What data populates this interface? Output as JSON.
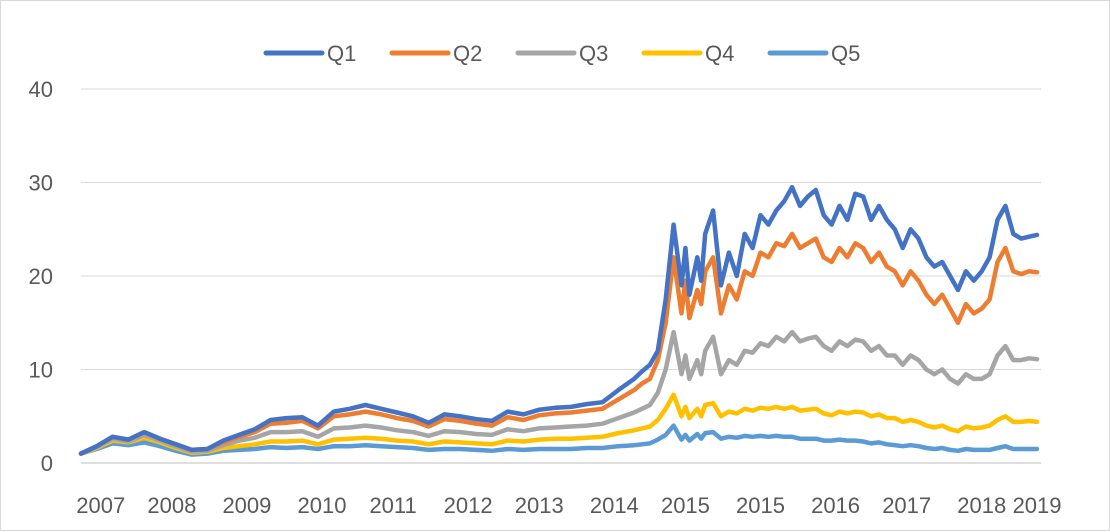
{
  "chart_data": {
    "type": "line",
    "title": "",
    "xlabel": "",
    "ylabel": "",
    "ylim": [
      0,
      40
    ],
    "yticks": [
      0,
      10,
      20,
      30,
      40
    ],
    "ytick_labels": [
      "0",
      "10",
      "20",
      "30",
      "40"
    ],
    "xlim": [
      2006.9,
      2019.05
    ],
    "xtick_labels": [
      "2007",
      "2008",
      "2009",
      "2010",
      "2011",
      "2012",
      "2013",
      "2014",
      "2015",
      "2015",
      "2016",
      "2017",
      "2018",
      "2019"
    ],
    "xtick_positions": [
      2007.15,
      2008.05,
      2009.0,
      2009.95,
      2010.85,
      2011.8,
      2012.7,
      2013.65,
      2014.55,
      2015.5,
      2016.45,
      2017.35,
      2018.3,
      2019.0
    ],
    "grid": "horizontal",
    "legend": "top",
    "series": [
      {
        "name": "Q1",
        "color": "#4472c4",
        "x": [
          2006.9,
          2007.1,
          2007.3,
          2007.5,
          2007.7,
          2007.9,
          2008.1,
          2008.3,
          2008.5,
          2008.7,
          2008.9,
          2009.1,
          2009.3,
          2009.5,
          2009.7,
          2009.9,
          2010.1,
          2010.3,
          2010.5,
          2010.7,
          2010.9,
          2011.1,
          2011.3,
          2011.5,
          2011.7,
          2011.9,
          2012.1,
          2012.3,
          2012.5,
          2012.7,
          2012.9,
          2013.1,
          2013.3,
          2013.5,
          2013.7,
          2013.9,
          2014.0,
          2014.1,
          2014.2,
          2014.3,
          2014.4,
          2014.5,
          2014.55,
          2014.6,
          2014.7,
          2014.75,
          2014.8,
          2014.9,
          2015.0,
          2015.1,
          2015.2,
          2015.3,
          2015.4,
          2015.5,
          2015.6,
          2015.7,
          2015.8,
          2015.9,
          2016.0,
          2016.1,
          2016.2,
          2016.3,
          2016.4,
          2016.5,
          2016.6,
          2016.7,
          2016.8,
          2016.9,
          2017.0,
          2017.1,
          2017.2,
          2017.3,
          2017.4,
          2017.5,
          2017.6,
          2017.7,
          2017.8,
          2017.9,
          2018.0,
          2018.1,
          2018.2,
          2018.3,
          2018.4,
          2018.5,
          2018.6,
          2018.7,
          2018.8,
          2018.9,
          2019.0
        ],
        "values": [
          1.0,
          1.8,
          2.8,
          2.5,
          3.3,
          2.6,
          2.0,
          1.4,
          1.5,
          2.4,
          3.0,
          3.6,
          4.6,
          4.8,
          4.9,
          4.0,
          5.5,
          5.8,
          6.2,
          5.8,
          5.4,
          5.0,
          4.3,
          5.2,
          5.0,
          4.7,
          4.5,
          5.5,
          5.2,
          5.7,
          5.9,
          6.0,
          6.3,
          6.5,
          7.8,
          9.0,
          9.8,
          10.5,
          12.0,
          17.5,
          25.5,
          19.0,
          23.0,
          18.0,
          22.0,
          19.5,
          24.5,
          27.0,
          19.0,
          22.5,
          20.0,
          24.5,
          23.0,
          26.5,
          25.5,
          27.0,
          28.0,
          29.5,
          27.5,
          28.5,
          29.2,
          26.5,
          25.5,
          27.5,
          26.0,
          28.8,
          28.5,
          26.0,
          27.5,
          26.0,
          25.0,
          23.0,
          25.0,
          24.0,
          22.0,
          21.0,
          21.5,
          20.0,
          18.5,
          20.5,
          19.5,
          20.5,
          22.0,
          26.0,
          27.5,
          24.5,
          24.0,
          24.2,
          24.4
        ]
      },
      {
        "name": "Q2",
        "color": "#ed7d31",
        "x": [
          2006.9,
          2007.1,
          2007.3,
          2007.5,
          2007.7,
          2007.9,
          2008.1,
          2008.3,
          2008.5,
          2008.7,
          2008.9,
          2009.1,
          2009.3,
          2009.5,
          2009.7,
          2009.9,
          2010.1,
          2010.3,
          2010.5,
          2010.7,
          2010.9,
          2011.1,
          2011.3,
          2011.5,
          2011.7,
          2011.9,
          2012.1,
          2012.3,
          2012.5,
          2012.7,
          2012.9,
          2013.1,
          2013.3,
          2013.5,
          2013.7,
          2013.9,
          2014.0,
          2014.1,
          2014.2,
          2014.3,
          2014.4,
          2014.5,
          2014.55,
          2014.6,
          2014.7,
          2014.75,
          2014.8,
          2014.9,
          2015.0,
          2015.1,
          2015.2,
          2015.3,
          2015.4,
          2015.5,
          2015.6,
          2015.7,
          2015.8,
          2015.9,
          2016.0,
          2016.1,
          2016.2,
          2016.3,
          2016.4,
          2016.5,
          2016.6,
          2016.7,
          2016.8,
          2016.9,
          2017.0,
          2017.1,
          2017.2,
          2017.3,
          2017.4,
          2017.5,
          2017.6,
          2017.7,
          2017.8,
          2017.9,
          2018.0,
          2018.1,
          2018.2,
          2018.3,
          2018.4,
          2018.5,
          2018.6,
          2018.7,
          2018.8,
          2018.9,
          2019.0
        ],
        "values": [
          1.0,
          1.8,
          2.8,
          2.5,
          3.3,
          2.6,
          2.0,
          1.4,
          1.5,
          2.2,
          2.8,
          3.3,
          4.2,
          4.3,
          4.5,
          3.7,
          5.0,
          5.2,
          5.5,
          5.2,
          4.8,
          4.5,
          3.9,
          4.7,
          4.5,
          4.2,
          4.0,
          4.9,
          4.6,
          5.1,
          5.3,
          5.4,
          5.6,
          5.8,
          6.8,
          7.8,
          8.5,
          9.0,
          11.0,
          15.0,
          22.0,
          16.0,
          19.5,
          15.5,
          18.5,
          17.0,
          20.5,
          22.0,
          16.0,
          19.0,
          17.5,
          20.5,
          20.0,
          22.5,
          22.0,
          23.5,
          23.2,
          24.5,
          23.0,
          23.5,
          24.0,
          22.0,
          21.5,
          23.0,
          22.0,
          23.5,
          23.0,
          21.5,
          22.5,
          21.0,
          20.5,
          19.0,
          20.5,
          19.5,
          18.0,
          17.0,
          18.0,
          16.5,
          15.0,
          17.0,
          16.0,
          16.5,
          17.5,
          21.5,
          23.0,
          20.5,
          20.2,
          20.5,
          20.4
        ]
      },
      {
        "name": "Q3",
        "color": "#a5a5a5",
        "x": [
          2006.9,
          2007.1,
          2007.3,
          2007.5,
          2007.7,
          2007.9,
          2008.1,
          2008.3,
          2008.5,
          2008.7,
          2008.9,
          2009.1,
          2009.3,
          2009.5,
          2009.7,
          2009.9,
          2010.1,
          2010.3,
          2010.5,
          2010.7,
          2010.9,
          2011.1,
          2011.3,
          2011.5,
          2011.7,
          2011.9,
          2012.1,
          2012.3,
          2012.5,
          2012.7,
          2012.9,
          2013.1,
          2013.3,
          2013.5,
          2013.7,
          2013.9,
          2014.0,
          2014.1,
          2014.2,
          2014.3,
          2014.4,
          2014.5,
          2014.55,
          2014.6,
          2014.7,
          2014.75,
          2014.8,
          2014.9,
          2015.0,
          2015.1,
          2015.2,
          2015.3,
          2015.4,
          2015.5,
          2015.6,
          2015.7,
          2015.8,
          2015.9,
          2016.0,
          2016.1,
          2016.2,
          2016.3,
          2016.4,
          2016.5,
          2016.6,
          2016.7,
          2016.8,
          2016.9,
          2017.0,
          2017.1,
          2017.2,
          2017.3,
          2017.4,
          2017.5,
          2017.6,
          2017.7,
          2017.8,
          2017.9,
          2018.0,
          2018.1,
          2018.2,
          2018.3,
          2018.4,
          2018.5,
          2018.6,
          2018.7,
          2018.8,
          2018.9,
          2019.0
        ],
        "values": [
          1.0,
          1.7,
          2.6,
          2.3,
          3.0,
          2.4,
          1.8,
          1.2,
          1.3,
          1.9,
          2.4,
          2.7,
          3.3,
          3.3,
          3.4,
          2.8,
          3.7,
          3.8,
          4.0,
          3.8,
          3.5,
          3.3,
          2.9,
          3.4,
          3.3,
          3.1,
          3.0,
          3.6,
          3.4,
          3.7,
          3.8,
          3.9,
          4.0,
          4.2,
          4.8,
          5.4,
          5.8,
          6.2,
          7.5,
          10.0,
          14.0,
          9.5,
          11.5,
          9.0,
          11.0,
          9.5,
          12.0,
          13.5,
          9.5,
          11.0,
          10.5,
          12.0,
          11.8,
          12.8,
          12.5,
          13.5,
          13.0,
          14.0,
          13.0,
          13.3,
          13.5,
          12.5,
          12.0,
          13.0,
          12.5,
          13.2,
          13.0,
          12.0,
          12.5,
          11.5,
          11.5,
          10.5,
          11.5,
          11.0,
          10.0,
          9.5,
          10.0,
          9.0,
          8.5,
          9.5,
          9.0,
          9.0,
          9.5,
          11.5,
          12.5,
          11.0,
          11.0,
          11.2,
          11.1
        ]
      },
      {
        "name": "Q4",
        "color": "#ffc000",
        "x": [
          2006.9,
          2007.1,
          2007.3,
          2007.5,
          2007.7,
          2007.9,
          2008.1,
          2008.3,
          2008.5,
          2008.7,
          2008.9,
          2009.1,
          2009.3,
          2009.5,
          2009.7,
          2009.9,
          2010.1,
          2010.3,
          2010.5,
          2010.7,
          2010.9,
          2011.1,
          2011.3,
          2011.5,
          2011.7,
          2011.9,
          2012.1,
          2012.3,
          2012.5,
          2012.7,
          2012.9,
          2013.1,
          2013.3,
          2013.5,
          2013.7,
          2013.9,
          2014.0,
          2014.1,
          2014.2,
          2014.3,
          2014.4,
          2014.5,
          2014.55,
          2014.6,
          2014.7,
          2014.75,
          2014.8,
          2014.9,
          2015.0,
          2015.1,
          2015.2,
          2015.3,
          2015.4,
          2015.5,
          2015.6,
          2015.7,
          2015.8,
          2015.9,
          2016.0,
          2016.1,
          2016.2,
          2016.3,
          2016.4,
          2016.5,
          2016.6,
          2016.7,
          2016.8,
          2016.9,
          2017.0,
          2017.1,
          2017.2,
          2017.3,
          2017.4,
          2017.5,
          2017.6,
          2017.7,
          2017.8,
          2017.9,
          2018.0,
          2018.1,
          2018.2,
          2018.3,
          2018.4,
          2018.5,
          2018.6,
          2018.7,
          2018.8,
          2018.9,
          2019.0
        ],
        "values": [
          1.0,
          1.6,
          2.4,
          2.2,
          2.7,
          2.2,
          1.6,
          1.1,
          1.2,
          1.6,
          1.8,
          2.0,
          2.3,
          2.3,
          2.4,
          2.0,
          2.5,
          2.6,
          2.7,
          2.6,
          2.4,
          2.3,
          2.0,
          2.3,
          2.2,
          2.1,
          2.0,
          2.4,
          2.3,
          2.5,
          2.6,
          2.6,
          2.7,
          2.8,
          3.2,
          3.5,
          3.7,
          3.9,
          4.6,
          5.8,
          7.3,
          5.0,
          6.0,
          4.8,
          5.8,
          5.0,
          6.2,
          6.4,
          5.0,
          5.5,
          5.3,
          5.8,
          5.6,
          5.9,
          5.8,
          6.0,
          5.8,
          6.0,
          5.6,
          5.7,
          5.8,
          5.3,
          5.1,
          5.5,
          5.3,
          5.5,
          5.4,
          5.0,
          5.2,
          4.8,
          4.8,
          4.4,
          4.6,
          4.4,
          4.0,
          3.8,
          4.0,
          3.6,
          3.4,
          3.9,
          3.7,
          3.8,
          4.0,
          4.6,
          5.0,
          4.4,
          4.4,
          4.5,
          4.4
        ]
      },
      {
        "name": "Q5",
        "color": "#5b9bd5",
        "x": [
          2006.9,
          2007.1,
          2007.3,
          2007.5,
          2007.7,
          2007.9,
          2008.1,
          2008.3,
          2008.5,
          2008.7,
          2008.9,
          2009.1,
          2009.3,
          2009.5,
          2009.7,
          2009.9,
          2010.1,
          2010.3,
          2010.5,
          2010.7,
          2010.9,
          2011.1,
          2011.3,
          2011.5,
          2011.7,
          2011.9,
          2012.1,
          2012.3,
          2012.5,
          2012.7,
          2012.9,
          2013.1,
          2013.3,
          2013.5,
          2013.7,
          2013.9,
          2014.0,
          2014.1,
          2014.2,
          2014.3,
          2014.4,
          2014.5,
          2014.55,
          2014.6,
          2014.7,
          2014.75,
          2014.8,
          2014.9,
          2015.0,
          2015.1,
          2015.2,
          2015.3,
          2015.4,
          2015.5,
          2015.6,
          2015.7,
          2015.8,
          2015.9,
          2016.0,
          2016.1,
          2016.2,
          2016.3,
          2016.4,
          2016.5,
          2016.6,
          2016.7,
          2016.8,
          2016.9,
          2017.0,
          2017.1,
          2017.2,
          2017.3,
          2017.4,
          2017.5,
          2017.6,
          2017.7,
          2017.8,
          2017.9,
          2018.0,
          2018.1,
          2018.2,
          2018.3,
          2018.4,
          2018.5,
          2018.6,
          2018.7,
          2018.8,
          2018.9,
          2019.0
        ],
        "values": [
          1.0,
          1.5,
          2.1,
          1.9,
          2.2,
          1.8,
          1.3,
          0.9,
          1.0,
          1.3,
          1.4,
          1.5,
          1.7,
          1.6,
          1.7,
          1.5,
          1.8,
          1.8,
          1.9,
          1.8,
          1.7,
          1.6,
          1.4,
          1.5,
          1.5,
          1.4,
          1.3,
          1.5,
          1.4,
          1.5,
          1.5,
          1.5,
          1.6,
          1.6,
          1.8,
          1.9,
          2.0,
          2.1,
          2.5,
          3.0,
          4.0,
          2.5,
          3.0,
          2.4,
          3.1,
          2.6,
          3.2,
          3.3,
          2.6,
          2.8,
          2.7,
          2.9,
          2.8,
          2.9,
          2.8,
          2.9,
          2.8,
          2.8,
          2.6,
          2.6,
          2.6,
          2.4,
          2.4,
          2.5,
          2.4,
          2.4,
          2.3,
          2.1,
          2.2,
          2.0,
          1.9,
          1.8,
          1.9,
          1.8,
          1.6,
          1.5,
          1.6,
          1.4,
          1.3,
          1.5,
          1.4,
          1.4,
          1.4,
          1.6,
          1.8,
          1.5,
          1.5,
          1.5,
          1.5
        ]
      }
    ]
  }
}
